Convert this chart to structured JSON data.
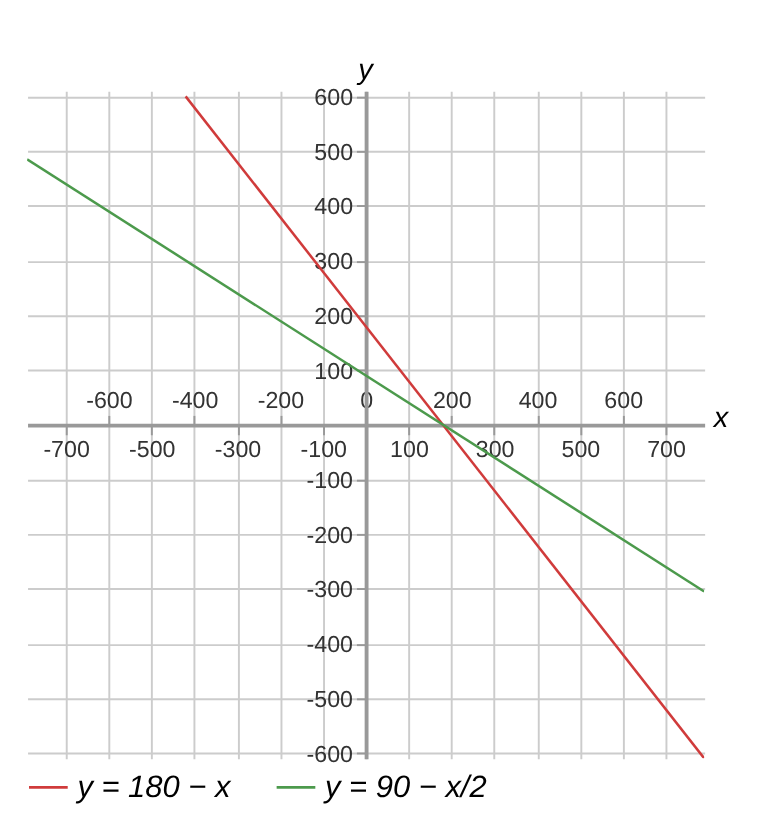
{
  "chart_data": {
    "type": "line",
    "xlabel": "x",
    "ylabel": "y",
    "xlim": [
      -790,
      790
    ],
    "ylim": [
      -610,
      610
    ],
    "xticks": [
      -700,
      -500,
      -300,
      -100,
      100,
      300,
      500,
      700
    ],
    "x2lim": [
      -790,
      790
    ],
    "x2ticks": [
      -600,
      -400,
      -200,
      0,
      200,
      400,
      600
    ],
    "yticks": [
      -600,
      -500,
      -400,
      -300,
      -200,
      -100,
      100,
      200,
      300,
      400,
      500,
      600
    ],
    "grid": true,
    "legend": "bottom",
    "marker": "none",
    "line_style": "solid",
    "series": [
      {
        "name": "y = 180 − x",
        "color": "#d03b3b",
        "x": [
          -420,
          790
        ],
        "values": [
          600,
          -610
        ]
      },
      {
        "name": "y = 90 − x/2",
        "color": "#4c9a4c",
        "x": [
          -790,
          790
        ],
        "values": [
          485,
          -305
        ]
      }
    ]
  }
}
